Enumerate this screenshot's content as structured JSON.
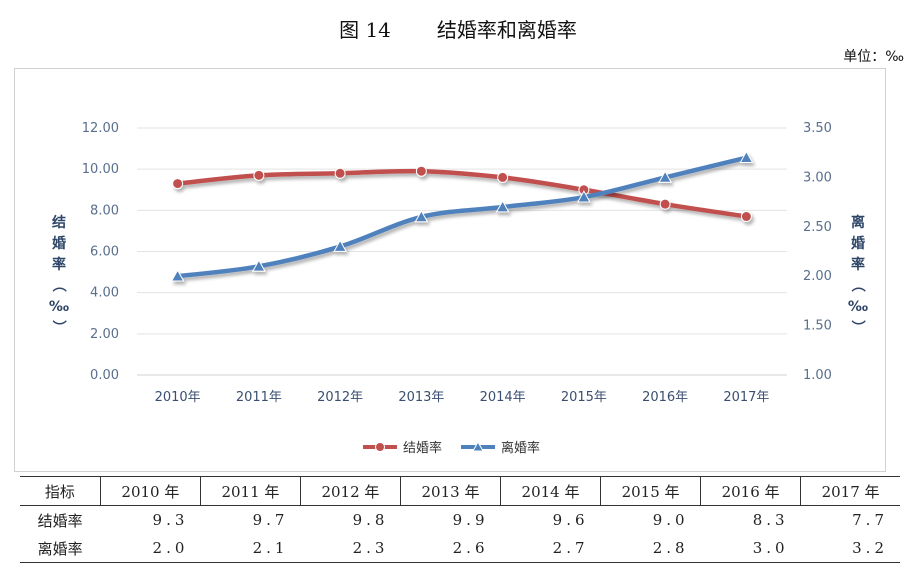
{
  "header": {
    "figure_number": "图 14",
    "figure_title": "结婚率和离婚率",
    "unit": "单位：‰"
  },
  "chart_data": {
    "type": "line",
    "categories": [
      "2010年",
      "2011年",
      "2012年",
      "2013年",
      "2014年",
      "2015年",
      "2016年",
      "2017年"
    ],
    "series": [
      {
        "name": "结婚率",
        "axis": "left",
        "color": "#c0504d",
        "values": [
          9.3,
          9.7,
          9.8,
          9.9,
          9.6,
          9.0,
          8.3,
          7.7
        ]
      },
      {
        "name": "离婚率",
        "axis": "right",
        "color": "#4f81bd",
        "values": [
          2.0,
          2.1,
          2.3,
          2.6,
          2.7,
          2.8,
          3.0,
          3.2
        ]
      }
    ],
    "ylabel_left": "结婚率（‰）",
    "ylabel_right": "离婚率（‰）",
    "ylim_left": [
      0,
      12
    ],
    "ylim_right": [
      1,
      3.5
    ],
    "yticks_left": [
      "0.00",
      "2.00",
      "4.00",
      "6.00",
      "8.00",
      "10.00",
      "12.00"
    ],
    "yticks_right": [
      "1.00",
      "1.50",
      "2.00",
      "2.50",
      "3.00",
      "3.50"
    ],
    "grid": true,
    "legend_position": "bottom"
  },
  "table": {
    "headers": [
      "指标",
      "2010 年",
      "2011 年",
      "2012 年",
      "2013 年",
      "2014 年",
      "2015 年",
      "2016 年",
      "2017 年"
    ],
    "rows": [
      {
        "label": "结婚率",
        "values": [
          "9.3",
          "9.7",
          "9.8",
          "9.9",
          "9.6",
          "9.0",
          "8.3",
          "7.7"
        ]
      },
      {
        "label": "离婚率",
        "values": [
          "2.0",
          "2.1",
          "2.3",
          "2.6",
          "2.7",
          "2.8",
          "3.0",
          "3.2"
        ]
      }
    ]
  }
}
